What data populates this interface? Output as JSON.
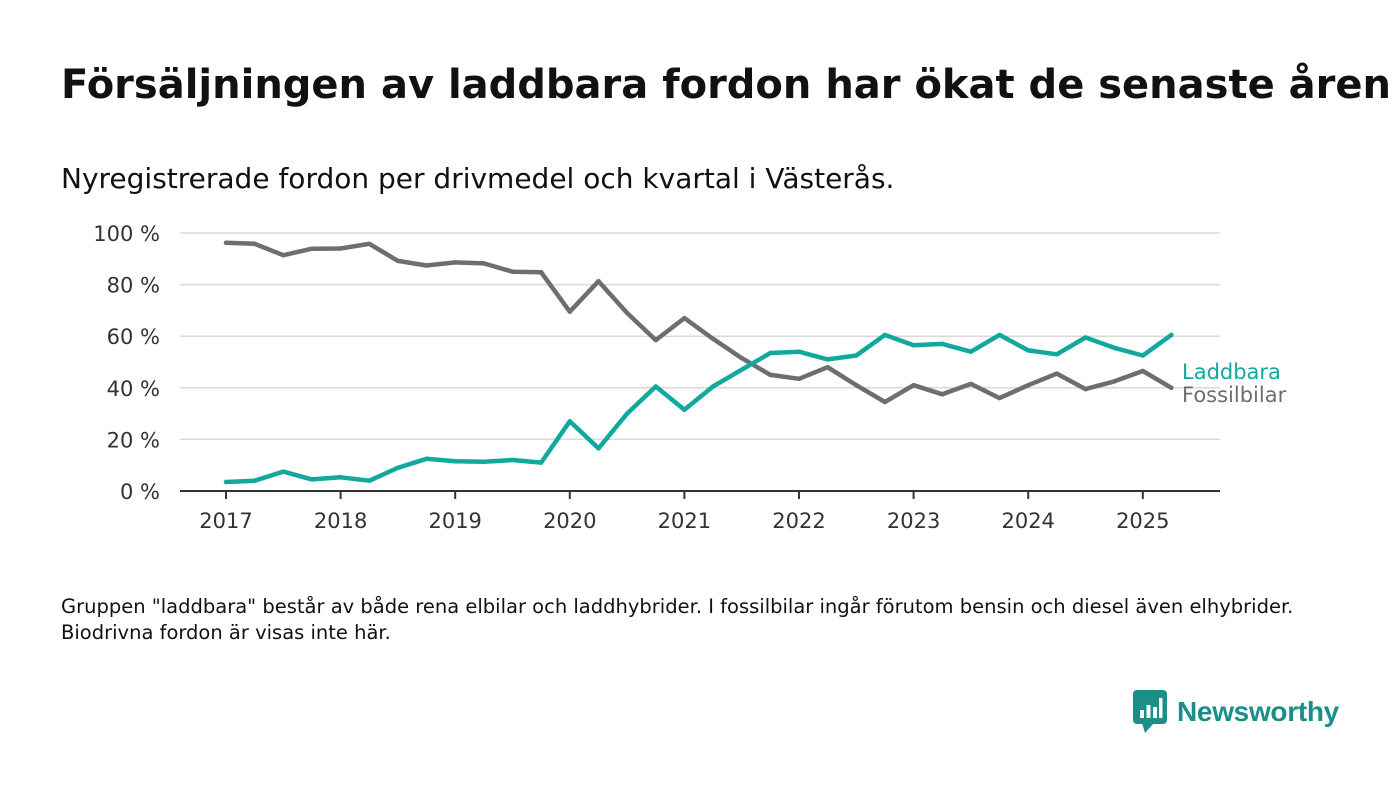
{
  "title": "Försäljningen av laddbara fordon har ökat de senaste åren",
  "subtitle": "Nyregistrerade fordon per drivmedel och kvartal i Västerås.",
  "footnote": "Gruppen \"laddbara\" består av både rena elbilar och laddhybrider. I fossilbilar ingår förutom bensin och diesel även elhybrider. Biodrivna fordon är visas inte här.",
  "brand": {
    "name": "Newsworthy",
    "icon": "bar-chart-speech-bubble-icon"
  },
  "colors": {
    "laddbara": "#13a89e",
    "fossilbilar": "#6e6e70",
    "grid": "#d9d9d9",
    "axis": "#333333",
    "brand": "#1a8f87"
  },
  "chart_data": {
    "type": "line",
    "title": "Försäljningen av laddbara fordon har ökat de senaste åren",
    "subtitle": "Nyregistrerade fordon per drivmedel och kvartal i Västerås.",
    "xlabel": "",
    "ylabel": "",
    "ylim": [
      0,
      100
    ],
    "xlim": [
      2017,
      2025.75
    ],
    "yticks": [
      0,
      20,
      40,
      60,
      80,
      100
    ],
    "ytick_labels": [
      "0 %",
      "20 %",
      "40 %",
      "60 %",
      "80 %",
      "100 %"
    ],
    "xticks": [
      2017,
      2018,
      2019,
      2020,
      2021,
      2022,
      2023,
      2024,
      2025
    ],
    "xtick_labels": [
      "2017",
      "2018",
      "2019",
      "2020",
      "2021",
      "2022",
      "2023",
      "2024",
      "2025"
    ],
    "grid": "horizontal",
    "legend": "inline labels at line ends",
    "x": [
      2017,
      2017.25,
      2017.5,
      2017.75,
      2018,
      2018.25,
      2018.5,
      2018.75,
      2019,
      2019.25,
      2019.5,
      2019.75,
      2020,
      2020.25,
      2020.5,
      2020.75,
      2021,
      2021.25,
      2021.5,
      2021.75,
      2022,
      2022.25,
      2022.5,
      2022.75,
      2023,
      2023.25,
      2023.5,
      2023.75,
      2024,
      2024.25,
      2024.5,
      2024.75,
      2025,
      2025.25
    ],
    "series": [
      {
        "name": "Laddbara",
        "color": "#13a89e",
        "values": [
          3.5,
          4,
          7.5,
          4.5,
          5.3,
          4,
          9,
          12.5,
          11.5,
          11.3,
          12,
          11,
          27,
          16.5,
          30,
          40.5,
          31.5,
          40.5,
          47,
          53.5,
          54,
          51,
          52.5,
          60.5,
          56.5,
          57,
          54,
          60.5,
          54.5,
          53,
          59.5,
          55.5,
          52.5,
          60.5
        ]
      },
      {
        "name": "Fossilbilar",
        "color": "#6e6e70",
        "values": [
          96.2,
          95.8,
          91.4,
          93.9,
          94,
          95.8,
          89.2,
          87.4,
          88.6,
          88.2,
          85,
          84.8,
          69.5,
          81.3,
          69,
          58.5,
          67,
          59,
          51.5,
          45,
          43.5,
          48,
          41,
          34.5,
          41,
          37.5,
          41.5,
          36,
          41,
          45.5,
          39.5,
          42.5,
          46.5,
          40
        ]
      }
    ]
  }
}
